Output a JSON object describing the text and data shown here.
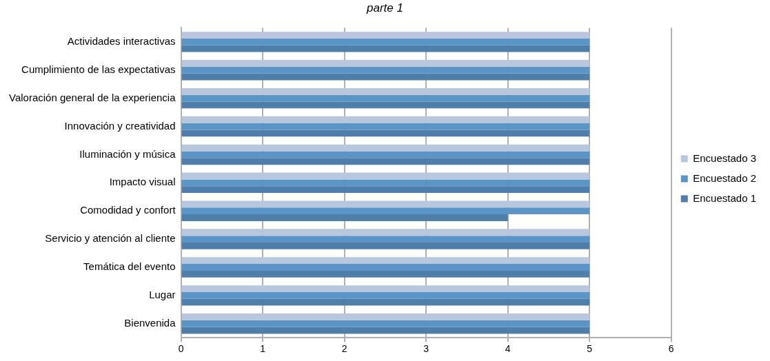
{
  "chart_data": {
    "type": "bar",
    "orientation": "horizontal",
    "title": "parte 1",
    "categories": [
      "Actividades interactivas",
      "Cumplimiento de las expectativas",
      "Valoración general de la experiencia",
      "Innovación y creatividad",
      "Iluminación y música",
      "Impacto visual",
      "Comodidad y confort",
      "Servicio y atención al cliente",
      "Temática del evento",
      "Lugar",
      "Bienvenida"
    ],
    "series": [
      {
        "name": "Encuestado 1",
        "color": "#4f7eab",
        "values": [
          5,
          5,
          5,
          5,
          5,
          5,
          4,
          5,
          5,
          5,
          5
        ]
      },
      {
        "name": "Encuestado 2",
        "color": "#5b95c5",
        "values": [
          5,
          5,
          5,
          5,
          5,
          5,
          5,
          5,
          5,
          5,
          5
        ]
      },
      {
        "name": "Encuestado 3",
        "color": "#b9c7de",
        "values": [
          5,
          5,
          5,
          5,
          5,
          5,
          5,
          5,
          5,
          5,
          5
        ]
      }
    ],
    "xlim": [
      0,
      6
    ],
    "xticks": [
      0,
      1,
      2,
      3,
      4,
      5,
      6
    ],
    "grid": "x",
    "legend": "right"
  }
}
